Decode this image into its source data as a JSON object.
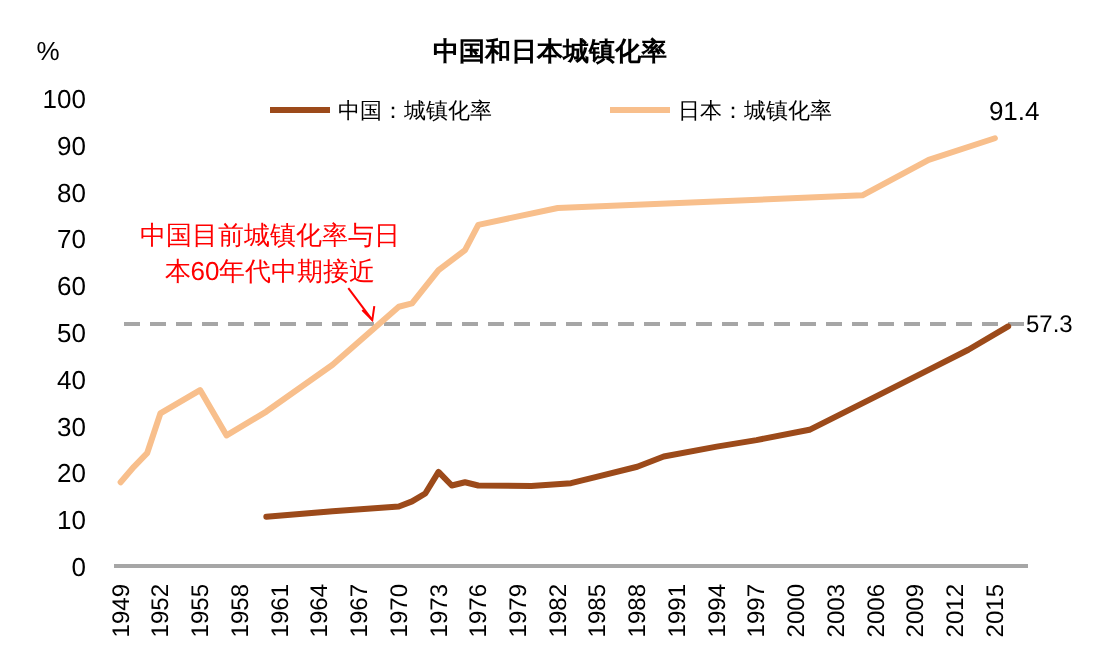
{
  "chart_data": {
    "type": "line",
    "title": "中国和日本城镇化率",
    "ylabel": "%",
    "xlim": [
      1948.5,
      2017.5
    ],
    "xticks": [
      1949,
      1952,
      1955,
      1958,
      1961,
      1964,
      1967,
      1970,
      1973,
      1976,
      1979,
      1982,
      1985,
      1988,
      1991,
      1994,
      1997,
      2000,
      2003,
      2006,
      2009,
      2012,
      2015
    ],
    "ylim": [
      0,
      100
    ],
    "yticks": [
      0,
      10,
      20,
      30,
      40,
      50,
      60,
      70,
      80,
      90,
      100
    ],
    "series": [
      {
        "name": "中国：城镇化率",
        "color": "#9c4a1a",
        "x": [
          1960,
          1965,
          1970,
          1971,
          1972,
          1973,
          1974,
          1975,
          1976,
          1980,
          1983,
          1985,
          1988,
          1990,
          1994,
          1997,
          2001,
          2006,
          2010,
          2013,
          2016
        ],
        "values": [
          10.5,
          11.7,
          12.7,
          13.8,
          15.5,
          20.1,
          17.2,
          17.9,
          17.2,
          17.1,
          17.7,
          19.1,
          21.2,
          23.4,
          25.5,
          26.9,
          29.1,
          36.2,
          41.9,
          46.2,
          51.2
        ]
      },
      {
        "name": "日本：城镇化率",
        "color": "#f8bf8c",
        "x": [
          1949,
          1950,
          1951,
          1952,
          1955,
          1957,
          1960,
          1965,
          1970,
          1971,
          1973,
          1975,
          1976,
          1982,
          2005,
          2010,
          2015
        ],
        "values": [
          17.9,
          21.2,
          24.1,
          32.6,
          37.6,
          27.9,
          33,
          43,
          55.4,
          56.1,
          63.2,
          67.5,
          72.9,
          76.5,
          79.2,
          86.8,
          91.4
        ],
        "value_labels": [
          null,
          null,
          null,
          null,
          null,
          null,
          null,
          null,
          null,
          null,
          null,
          null,
          null,
          null,
          null,
          null,
          "91.4"
        ]
      }
    ],
    "ref_lines": [
      {
        "axis": "y",
        "value": 51.7,
        "color": "#a6a6a6",
        "line_style": "dashed"
      }
    ],
    "annotations": [
      {
        "text": "中国目前城镇化率与日本60年代中期接近",
        "x": 1968,
        "y": 51.7
      },
      "57.3"
    ],
    "legend": "top",
    "grid": false,
    "marker": "none",
    "line_style": "solid"
  }
}
